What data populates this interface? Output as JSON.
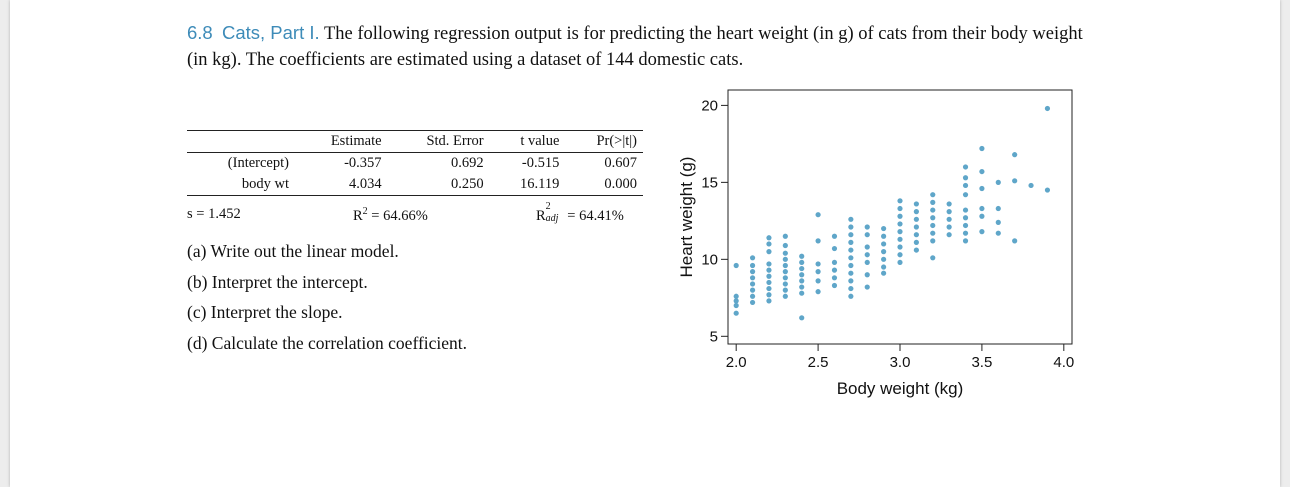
{
  "problem": {
    "number": "6.8",
    "title": "Cats, Part I.",
    "text": "The following regression output is for predicting the heart weight (in g) of cats from their body weight (in kg). The coefficients are estimated using a dataset of 144 domestic cats."
  },
  "regression_table": {
    "headers": [
      "Estimate",
      "Std. Error",
      "t value",
      "Pr(>|t|)"
    ],
    "rows": [
      {
        "label": "(Intercept)",
        "values": [
          "-0.357",
          "0.692",
          "-0.515",
          "0.607"
        ]
      },
      {
        "label": "body wt",
        "values": [
          "4.034",
          "0.250",
          "16.119",
          "0.000"
        ]
      }
    ],
    "s": "s = 1.452",
    "r2": "R",
    "r2_sup": "2",
    "r2_val": " = 64.66%",
    "r2adj": "R",
    "r2adj_sup": "2",
    "r2adj_sub": "adj",
    "r2adj_val": " = 64.41%"
  },
  "questions": [
    "(a) Write out the linear model.",
    "(b) Interpret the intercept.",
    "(c) Interpret the slope.",
    "(d) Calculate the correlation coefficient."
  ],
  "chart_data": {
    "type": "scatter",
    "xlabel": "Body weight (kg)",
    "ylabel": "Heart weight (g)",
    "xlim": [
      1.95,
      4.05
    ],
    "ylim": [
      4.5,
      21
    ],
    "xticks": [
      "2.0",
      "2.5",
      "3.0",
      "3.5",
      "4.0"
    ],
    "yticks": [
      "5",
      "10",
      "15",
      "20"
    ],
    "point_color": "#5fa6c9",
    "points": [
      [
        2.0,
        6.5
      ],
      [
        2.0,
        7.0
      ],
      [
        2.0,
        7.3
      ],
      [
        2.0,
        7.6
      ],
      [
        2.0,
        9.6
      ],
      [
        2.1,
        7.2
      ],
      [
        2.1,
        7.6
      ],
      [
        2.1,
        8.0
      ],
      [
        2.1,
        8.4
      ],
      [
        2.1,
        8.8
      ],
      [
        2.1,
        9.2
      ],
      [
        2.1,
        9.6
      ],
      [
        2.1,
        10.1
      ],
      [
        2.2,
        7.3
      ],
      [
        2.2,
        7.7
      ],
      [
        2.2,
        8.1
      ],
      [
        2.2,
        8.5
      ],
      [
        2.2,
        8.9
      ],
      [
        2.2,
        9.3
      ],
      [
        2.2,
        9.7
      ],
      [
        2.2,
        10.5
      ],
      [
        2.2,
        11.0
      ],
      [
        2.2,
        11.4
      ],
      [
        2.3,
        7.6
      ],
      [
        2.3,
        8.0
      ],
      [
        2.3,
        8.4
      ],
      [
        2.3,
        8.8
      ],
      [
        2.3,
        9.2
      ],
      [
        2.3,
        9.6
      ],
      [
        2.3,
        10.0
      ],
      [
        2.3,
        10.4
      ],
      [
        2.3,
        10.9
      ],
      [
        2.3,
        11.5
      ],
      [
        2.4,
        7.8
      ],
      [
        2.4,
        8.2
      ],
      [
        2.4,
        8.6
      ],
      [
        2.4,
        9.0
      ],
      [
        2.4,
        9.4
      ],
      [
        2.4,
        9.8
      ],
      [
        2.4,
        10.2
      ],
      [
        2.4,
        6.2
      ],
      [
        2.5,
        7.9
      ],
      [
        2.5,
        8.6
      ],
      [
        2.5,
        9.2
      ],
      [
        2.5,
        9.7
      ],
      [
        2.5,
        11.2
      ],
      [
        2.5,
        12.9
      ],
      [
        2.6,
        8.3
      ],
      [
        2.6,
        8.8
      ],
      [
        2.6,
        9.3
      ],
      [
        2.6,
        9.8
      ],
      [
        2.6,
        10.7
      ],
      [
        2.6,
        11.5
      ],
      [
        2.7,
        7.6
      ],
      [
        2.7,
        8.1
      ],
      [
        2.7,
        8.6
      ],
      [
        2.7,
        9.1
      ],
      [
        2.7,
        9.6
      ],
      [
        2.7,
        10.1
      ],
      [
        2.7,
        10.6
      ],
      [
        2.7,
        11.1
      ],
      [
        2.7,
        11.6
      ],
      [
        2.7,
        12.1
      ],
      [
        2.7,
        12.6
      ],
      [
        2.8,
        8.2
      ],
      [
        2.8,
        9.0
      ],
      [
        2.8,
        9.8
      ],
      [
        2.8,
        10.3
      ],
      [
        2.8,
        10.8
      ],
      [
        2.8,
        11.6
      ],
      [
        2.8,
        12.1
      ],
      [
        2.9,
        9.1
      ],
      [
        2.9,
        9.5
      ],
      [
        2.9,
        10.0
      ],
      [
        2.9,
        10.5
      ],
      [
        2.9,
        11.0
      ],
      [
        2.9,
        11.5
      ],
      [
        2.9,
        12.0
      ],
      [
        3.0,
        9.8
      ],
      [
        3.0,
        10.3
      ],
      [
        3.0,
        10.8
      ],
      [
        3.0,
        11.3
      ],
      [
        3.0,
        11.8
      ],
      [
        3.0,
        12.3
      ],
      [
        3.0,
        12.8
      ],
      [
        3.0,
        13.3
      ],
      [
        3.0,
        13.8
      ],
      [
        3.1,
        10.6
      ],
      [
        3.1,
        11.1
      ],
      [
        3.1,
        11.6
      ],
      [
        3.1,
        12.1
      ],
      [
        3.1,
        12.6
      ],
      [
        3.1,
        13.1
      ],
      [
        3.1,
        13.6
      ],
      [
        3.2,
        10.1
      ],
      [
        3.2,
        11.2
      ],
      [
        3.2,
        11.7
      ],
      [
        3.2,
        12.2
      ],
      [
        3.2,
        12.7
      ],
      [
        3.2,
        13.2
      ],
      [
        3.2,
        13.7
      ],
      [
        3.2,
        14.2
      ],
      [
        3.3,
        11.6
      ],
      [
        3.3,
        12.1
      ],
      [
        3.3,
        12.6
      ],
      [
        3.3,
        13.1
      ],
      [
        3.3,
        13.6
      ],
      [
        3.4,
        11.2
      ],
      [
        3.4,
        11.7
      ],
      [
        3.4,
        12.2
      ],
      [
        3.4,
        12.7
      ],
      [
        3.4,
        13.2
      ],
      [
        3.4,
        14.2
      ],
      [
        3.4,
        14.8
      ],
      [
        3.4,
        15.3
      ],
      [
        3.4,
        16.0
      ],
      [
        3.5,
        11.8
      ],
      [
        3.5,
        12.8
      ],
      [
        3.5,
        13.3
      ],
      [
        3.5,
        14.6
      ],
      [
        3.5,
        15.7
      ],
      [
        3.5,
        17.2
      ],
      [
        3.6,
        11.7
      ],
      [
        3.6,
        12.4
      ],
      [
        3.6,
        13.3
      ],
      [
        3.6,
        15.0
      ],
      [
        3.7,
        11.2
      ],
      [
        3.7,
        15.1
      ],
      [
        3.7,
        16.8
      ],
      [
        3.8,
        14.8
      ],
      [
        3.9,
        14.5
      ],
      [
        3.9,
        19.8
      ]
    ]
  }
}
